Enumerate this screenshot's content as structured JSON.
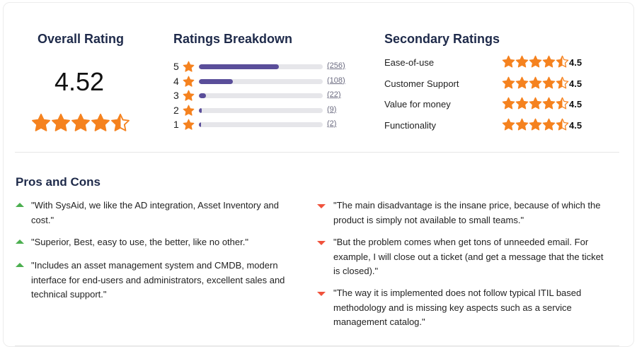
{
  "overall": {
    "title": "Overall Rating",
    "value": "4.52",
    "stars": 4.52
  },
  "breakdown": {
    "title": "Ratings Breakdown",
    "rows": [
      {
        "label": "5",
        "count_text": "(256)",
        "count": 256,
        "fraction": 0.645
      },
      {
        "label": "4",
        "count_text": "(108)",
        "count": 108,
        "fraction": 0.272
      },
      {
        "label": "3",
        "count_text": "(22)",
        "count": 22,
        "fraction": 0.055
      },
      {
        "label": "2",
        "count_text": "(9)",
        "count": 9,
        "fraction": 0.023
      },
      {
        "label": "1",
        "count_text": "(2)",
        "count": 2,
        "fraction": 0.005
      }
    ]
  },
  "secondary": {
    "title": "Secondary Ratings",
    "rows": [
      {
        "label": "Ease-of-use",
        "value": "4.5",
        "stars": 4.5
      },
      {
        "label": "Customer Support",
        "value": "4.5",
        "stars": 4.5
      },
      {
        "label": "Value for money",
        "value": "4.5",
        "stars": 4.5
      },
      {
        "label": "Functionality",
        "value": "4.5",
        "stars": 4.5
      }
    ]
  },
  "pros_cons": {
    "title": "Pros and Cons",
    "pros": [
      {
        "line1": "\"With SysAid, we like the AD integration, Asset Inventory and",
        "line2": "cost.\"",
        "line3": ""
      },
      {
        "line1": "\"Superior, Best, easy to use, the better, like no other.\"",
        "line2": "",
        "line3": ""
      },
      {
        "line1": "\"Includes an asset management system and CMDB, modern",
        "line2": "interface for end-users and administrators, excellent sales and",
        "line3": "technical support.\""
      }
    ],
    "cons": [
      {
        "line1": "\"The main disadvantage is the insane price, because of which the",
        "line2": "product is simply not available to small teams.\"",
        "line3": ""
      },
      {
        "line1": "\"But the problem comes when get tons of unneeded email. For",
        "line2": "example, I will close out a ticket (and get a message that the ticket",
        "line3": "is closed).\""
      },
      {
        "line1": "\"The way it is implemented does not follow typical ITIL based",
        "line2": "methodology and is missing key aspects such as a service",
        "line3": "management catalog.\""
      }
    ]
  },
  "colors": {
    "star": "#f5821f",
    "star_empty": "#ffe0c2",
    "bar_fill": "#5a4e9a",
    "bar_track": "#e6e6ea",
    "pro_arrow": "#4caf50",
    "con_arrow": "#f0523c",
    "heading": "#1e2a4a"
  }
}
